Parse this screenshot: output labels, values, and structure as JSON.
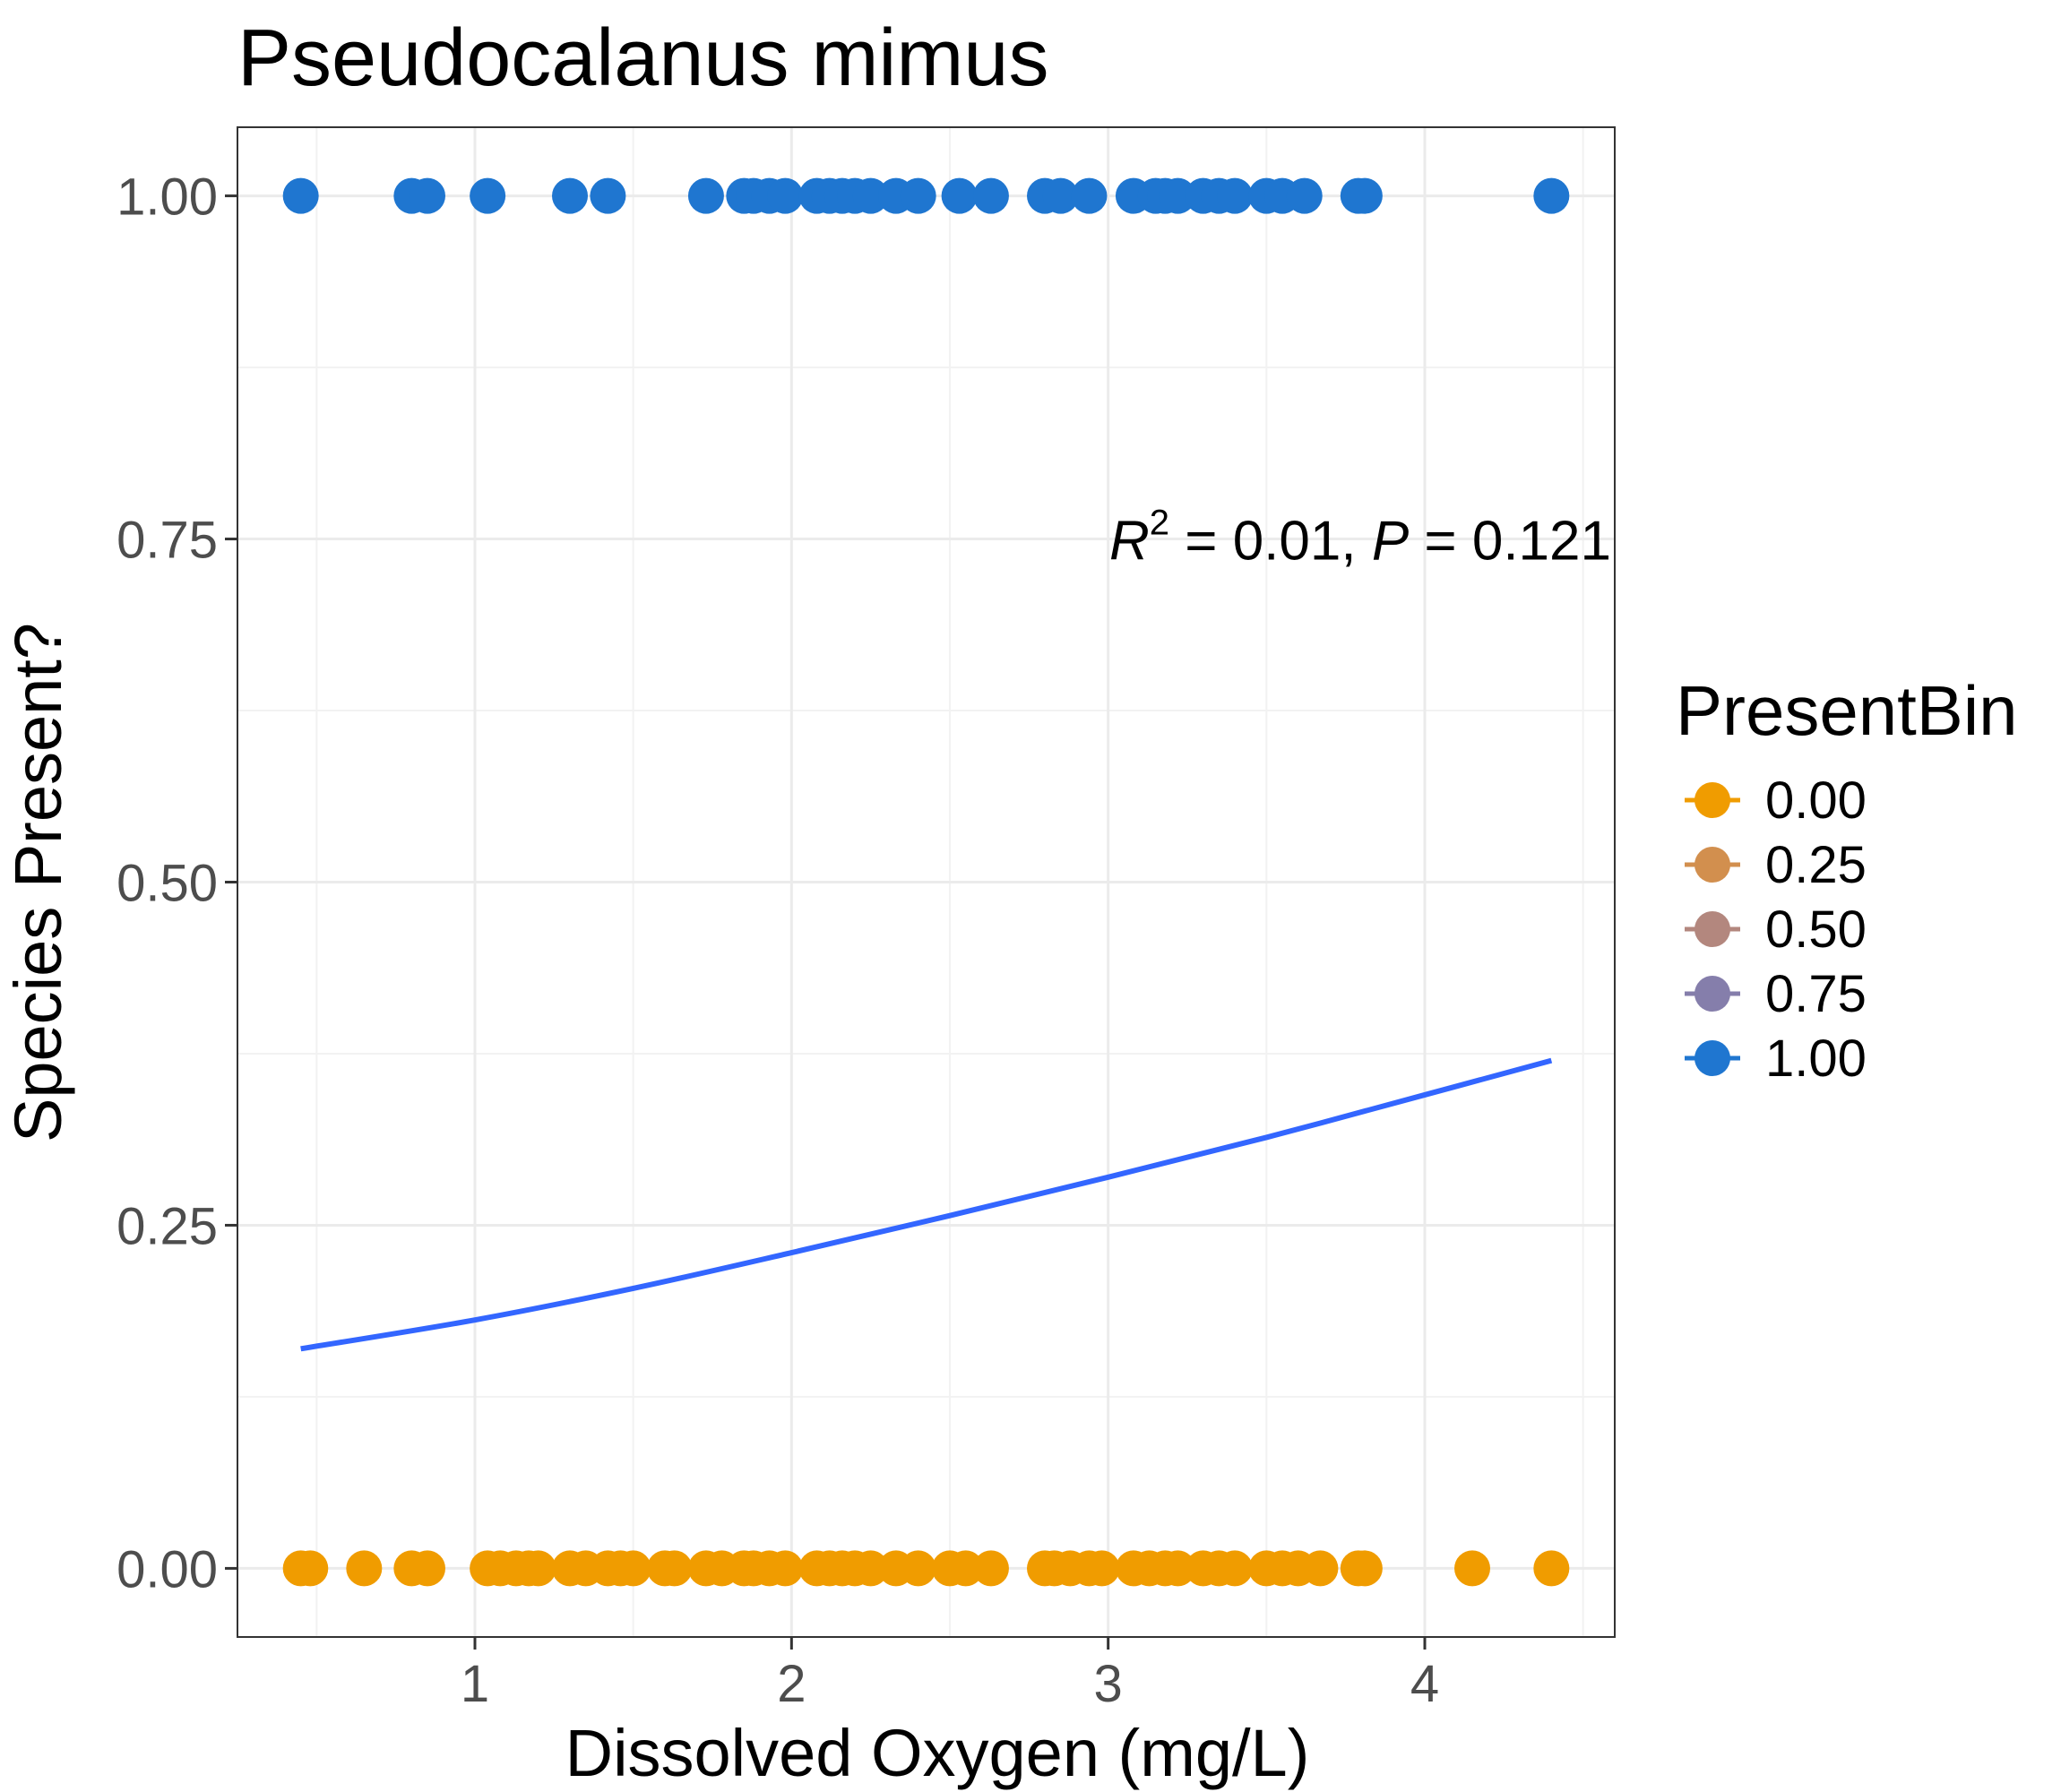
{
  "chart_data": {
    "type": "scatter",
    "title": "Pseudocalanus mimus",
    "xlabel": "Dissolved Oxygen (mg/L)",
    "ylabel": "Species Present?",
    "xlim": [
      0.25,
      4.6
    ],
    "ylim": [
      -0.05,
      1.05
    ],
    "x_ticks": [
      {
        "value": 1,
        "label": "1"
      },
      {
        "value": 2,
        "label": "2"
      },
      {
        "value": 3,
        "label": "3"
      },
      {
        "value": 4,
        "label": "4"
      }
    ],
    "y_ticks": [
      {
        "value": 0,
        "label": "0.00"
      },
      {
        "value": 0.25,
        "label": "0.25"
      },
      {
        "value": 0.5,
        "label": "0.50"
      },
      {
        "value": 0.75,
        "label": "0.75"
      },
      {
        "value": 1,
        "label": "1.00"
      }
    ],
    "grid": true,
    "legend": {
      "title": "PresentBin",
      "position": "right",
      "entries": [
        {
          "label": "0.00",
          "color": "#F09C00"
        },
        {
          "label": "0.25",
          "color": "#D28F4E"
        },
        {
          "label": "0.50",
          "color": "#B3877E"
        },
        {
          "label": "0.75",
          "color": "#857EAB"
        },
        {
          "label": "1.00",
          "color": "#1F76D0"
        }
      ]
    },
    "annotation": {
      "r_symbol": "R",
      "r_exponent": "2",
      "r_text": " = 0.01, ",
      "p_symbol": "P",
      "p_text": " = 0.121",
      "x": 4.6,
      "y": 0.735
    },
    "series": [
      {
        "present": 1,
        "color": "#1F76D0",
        "x": [
          0.45,
          0.8,
          0.85,
          1.04,
          1.3,
          1.42,
          1.73,
          1.85,
          1.88,
          1.93,
          1.98,
          2.08,
          2.12,
          2.16,
          2.2,
          2.25,
          2.33,
          2.4,
          2.53,
          2.63,
          2.8,
          2.85,
          2.94,
          3.08,
          3.15,
          3.18,
          3.22,
          3.3,
          3.35,
          3.4,
          3.5,
          3.55,
          3.62,
          3.79,
          3.81,
          4.4
        ]
      },
      {
        "present": 0,
        "color": "#F09C00",
        "x": [
          0.45,
          0.48,
          0.65,
          0.8,
          0.85,
          1.04,
          1.08,
          1.13,
          1.17,
          1.2,
          1.3,
          1.35,
          1.42,
          1.46,
          1.5,
          1.6,
          1.63,
          1.73,
          1.78,
          1.85,
          1.88,
          1.93,
          1.98,
          2.08,
          2.12,
          2.16,
          2.2,
          2.25,
          2.33,
          2.4,
          2.5,
          2.55,
          2.63,
          2.8,
          2.83,
          2.88,
          2.94,
          2.98,
          3.08,
          3.13,
          3.18,
          3.22,
          3.3,
          3.35,
          3.4,
          3.5,
          3.55,
          3.6,
          3.67,
          3.79,
          3.81,
          4.15,
          4.4
        ]
      }
    ],
    "fit_line": {
      "color": "#3366FF",
      "x": [
        0.45,
        1.0,
        1.5,
        2.0,
        2.5,
        3.0,
        3.5,
        4.0,
        4.4
      ],
      "y": [
        0.16,
        0.181,
        0.204,
        0.23,
        0.257,
        0.285,
        0.314,
        0.345,
        0.37
      ]
    }
  }
}
